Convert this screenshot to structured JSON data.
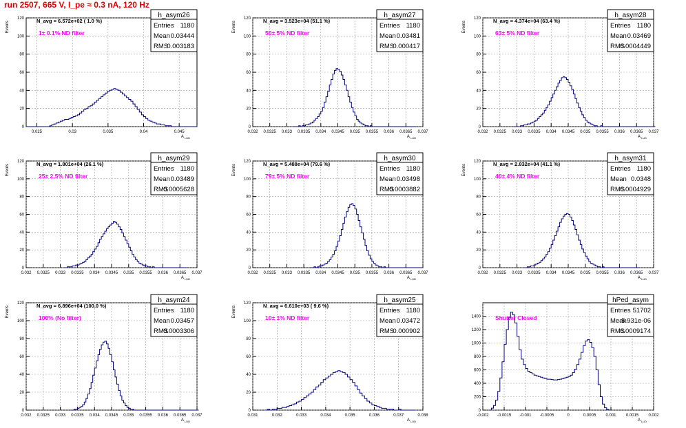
{
  "run_title": "run 2507,   665 V, I_pe ≈ 0.3 nA, 120 Hz",
  "colors": {
    "hist": "#000080",
    "note": "#ff00ff",
    "title": "#e00000",
    "grid": "#9a9a9a"
  },
  "stat_labels": {
    "entries": "Entries",
    "mean": "Mean",
    "rms": "RMS"
  },
  "chart_data": [
    {
      "type": "histogram",
      "name": "h_asym26",
      "navg": "N_avg = 6.572e+02 ( 1.0 %)",
      "note": "1± 0.1% ND filter",
      "entries": "1180",
      "mean": "0.03444",
      "rms": "0.003183",
      "ylabel": "Events",
      "xlabel": "A",
      "xlim": [
        0.0235,
        0.0475
      ],
      "ylim": [
        0,
        120
      ],
      "xticks": [
        0.025,
        0.03,
        0.035,
        0.04,
        0.045
      ],
      "xticklabels": [
        "0.025",
        "0.03",
        "0.035",
        "0.04",
        "0.045"
      ],
      "yticks": [
        0,
        20,
        40,
        60,
        80,
        100,
        120
      ],
      "bins": {
        "x0": 0.0235,
        "width": 0.0003,
        "values": [
          0,
          0,
          0,
          0,
          0,
          0,
          0,
          0,
          0,
          0,
          0,
          1,
          2,
          3,
          4,
          5,
          6,
          7,
          8,
          8,
          9,
          10,
          11,
          12,
          13,
          15,
          17,
          19,
          20,
          22,
          23,
          25,
          27,
          29,
          31,
          33,
          35,
          37,
          39,
          40,
          41,
          42,
          41,
          40,
          38,
          36,
          34,
          32,
          30,
          28,
          25,
          22,
          19,
          16,
          13,
          11,
          9,
          7,
          6,
          5,
          4,
          3,
          3,
          2,
          2,
          1,
          1,
          1,
          0,
          0,
          0,
          0,
          0,
          0,
          0,
          0,
          0,
          0,
          0,
          0
        ]
      }
    },
    {
      "type": "histogram",
      "name": "h_asym27",
      "navg": "N_avg = 3.523e+04 (51.1 %)",
      "note": "50± 5% ND filter",
      "entries": "1180",
      "mean": "0.03481",
      "rms": "0.000417",
      "ylabel": "Events",
      "xlabel": "A",
      "xlim": [
        0.032,
        0.037
      ],
      "ylim": [
        0,
        120
      ],
      "xticks": [
        0.032,
        0.0325,
        0.033,
        0.0335,
        0.034,
        0.0345,
        0.035,
        0.0355,
        0.036,
        0.0365,
        0.037
      ],
      "xticklabels": [
        "0.032",
        "0.0325",
        "0.033",
        "0.0335",
        "0.034",
        "0.0345",
        "0.035",
        "0.0355",
        "0.036",
        "0.0365",
        "0.037"
      ],
      "yticks": [
        0,
        20,
        40,
        60,
        80,
        100,
        120
      ],
      "bins": {
        "x0": 0.0332,
        "width": 5e-05,
        "values": [
          0,
          0,
          0,
          1,
          0,
          1,
          1,
          2,
          2,
          3,
          4,
          5,
          7,
          9,
          11,
          14,
          17,
          21,
          27,
          33,
          39,
          46,
          52,
          58,
          62,
          64,
          63,
          61,
          57,
          52,
          46,
          40,
          33,
          27,
          21,
          16,
          12,
          8,
          6,
          4,
          3,
          2,
          1,
          1,
          0,
          1,
          0,
          0,
          0,
          0,
          0,
          0,
          0,
          0,
          0,
          0,
          0,
          0,
          0,
          0,
          0,
          0,
          0,
          0,
          0,
          0,
          0,
          0,
          0,
          0,
          0,
          0
        ]
      }
    },
    {
      "type": "histogram",
      "name": "h_asym28",
      "navg": "N_avg = 4.374e+04 (63.4 %)",
      "note": "63± 5% ND filter",
      "entries": "1180",
      "mean": "0.03469",
      "rms": "0.0004449",
      "ylabel": "Events",
      "xlabel": "A",
      "xlim": [
        0.032,
        0.037
      ],
      "ylim": [
        0,
        120
      ],
      "xticks": [
        0.032,
        0.0325,
        0.033,
        0.0335,
        0.034,
        0.0345,
        0.035,
        0.0355,
        0.036,
        0.0365,
        0.037
      ],
      "xticklabels": [
        "0.032",
        "0.0325",
        "0.033",
        "0.0335",
        "0.034",
        "0.0345",
        "0.035",
        "0.0355",
        "0.036",
        "0.0365",
        "0.037"
      ],
      "yticks": [
        0,
        20,
        40,
        60,
        80,
        100,
        120
      ],
      "bins": {
        "x0": 0.0329,
        "width": 5e-05,
        "values": [
          0,
          0,
          0,
          0,
          1,
          1,
          2,
          2,
          3,
          3,
          4,
          5,
          6,
          7,
          9,
          11,
          13,
          15,
          18,
          21,
          24,
          28,
          32,
          36,
          40,
          44,
          48,
          51,
          54,
          55,
          54,
          52,
          49,
          45,
          41,
          36,
          31,
          26,
          21,
          17,
          13,
          10,
          7,
          5,
          4,
          3,
          2,
          1,
          1,
          0,
          0,
          1,
          0,
          0,
          0,
          0,
          0,
          0,
          0,
          0,
          0,
          0,
          0,
          0,
          0,
          0,
          0,
          0,
          0,
          0,
          0,
          0,
          0,
          0,
          0,
          0,
          0,
          0,
          0,
          0,
          0,
          0,
          0
        ]
      }
    },
    {
      "type": "histogram",
      "name": "h_asym29",
      "navg": "N_avg = 1.801e+04 (26.1 %)",
      "note": "25± 2.5% ND filter",
      "entries": "1180",
      "mean": "0.03489",
      "rms": "0.0005628",
      "ylabel": "Events",
      "xlabel": "A",
      "xlim": [
        0.032,
        0.037
      ],
      "ylim": [
        0,
        120
      ],
      "xticks": [
        0.032,
        0.0325,
        0.033,
        0.0335,
        0.034,
        0.0345,
        0.035,
        0.0355,
        0.036,
        0.0365,
        0.037
      ],
      "xticklabels": [
        "0.032",
        "0.0325",
        "0.033",
        "0.0335",
        "0.034",
        "0.0345",
        "0.035",
        "0.0355",
        "0.036",
        "0.0365",
        "0.037"
      ],
      "yticks": [
        0,
        20,
        40,
        60,
        80,
        100,
        120
      ],
      "bins": {
        "x0": 0.0331,
        "width": 5e-05,
        "values": [
          0,
          0,
          1,
          1,
          1,
          2,
          2,
          3,
          3,
          4,
          5,
          6,
          7,
          9,
          11,
          13,
          15,
          18,
          21,
          24,
          28,
          32,
          35,
          38,
          41,
          44,
          46,
          48,
          50,
          52,
          51,
          49,
          46,
          43,
          39,
          35,
          31,
          27,
          23,
          19,
          15,
          12,
          9,
          7,
          5,
          4,
          3,
          2,
          2,
          1,
          1,
          0,
          1,
          0,
          0,
          0,
          0,
          0,
          0,
          0,
          0,
          0,
          0,
          0,
          0,
          0,
          0,
          0,
          0,
          0,
          0,
          0
        ]
      }
    },
    {
      "type": "histogram",
      "name": "h_asym30",
      "navg": "N_avg = 5.488e+04 (79.6 %)",
      "note": "79± 5% ND filter",
      "entries": "1180",
      "mean": "0.03498",
      "rms": "0.0003882",
      "ylabel": "Events",
      "xlabel": "A",
      "xlim": [
        0.032,
        0.037
      ],
      "ylim": [
        0,
        120
      ],
      "xticks": [
        0.032,
        0.0325,
        0.033,
        0.0335,
        0.034,
        0.0345,
        0.035,
        0.0355,
        0.036,
        0.0365,
        0.037
      ],
      "xticklabels": [
        "0.032",
        "0.0325",
        "0.033",
        "0.0335",
        "0.034",
        "0.0345",
        "0.035",
        "0.0355",
        "0.036",
        "0.0365",
        "0.037"
      ],
      "yticks": [
        0,
        20,
        40,
        60,
        80,
        100,
        120
      ],
      "bins": {
        "x0": 0.0337,
        "width": 5e-05,
        "values": [
          0,
          0,
          1,
          0,
          1,
          2,
          2,
          3,
          4,
          5,
          7,
          9,
          12,
          15,
          19,
          24,
          30,
          36,
          43,
          50,
          57,
          63,
          68,
          71,
          72,
          70,
          66,
          60,
          53,
          46,
          39,
          32,
          25,
          19,
          14,
          10,
          7,
          5,
          3,
          2,
          1,
          1,
          0,
          1,
          0,
          0,
          0,
          0,
          0,
          0,
          0,
          0,
          0,
          0,
          0,
          0,
          0,
          0,
          0,
          0,
          0,
          0,
          0,
          0,
          0,
          0
        ]
      }
    },
    {
      "type": "histogram",
      "name": "h_asym31",
      "navg": "N_avg = 2.832e+04 (41.1 %)",
      "note": "40± 4% ND filter",
      "entries": "1180",
      "mean": "0.0348",
      "rms": "0.0004929",
      "ylabel": "Events",
      "xlabel": "A",
      "xlim": [
        0.032,
        0.037
      ],
      "ylim": [
        0,
        120
      ],
      "xticks": [
        0.032,
        0.0325,
        0.033,
        0.0335,
        0.034,
        0.0345,
        0.035,
        0.0355,
        0.036,
        0.0365,
        0.037
      ],
      "xticklabels": [
        "0.032",
        "0.0325",
        "0.033",
        "0.0335",
        "0.034",
        "0.0345",
        "0.035",
        "0.0355",
        "0.036",
        "0.0365",
        "0.037"
      ],
      "yticks": [
        0,
        20,
        40,
        60,
        80,
        100,
        120
      ],
      "bins": {
        "x0": 0.0332,
        "width": 5e-05,
        "values": [
          0,
          0,
          1,
          1,
          2,
          2,
          3,
          4,
          5,
          6,
          8,
          10,
          12,
          15,
          18,
          22,
          26,
          31,
          36,
          41,
          46,
          51,
          55,
          58,
          60,
          61,
          60,
          57,
          53,
          48,
          43,
          37,
          31,
          26,
          21,
          17,
          13,
          10,
          7,
          5,
          4,
          3,
          2,
          1,
          1,
          0,
          1,
          0,
          0,
          0,
          0,
          0,
          0,
          0,
          0,
          0,
          0,
          0,
          0,
          0,
          0,
          0,
          0,
          0,
          0,
          0,
          0,
          0
        ]
      }
    },
    {
      "type": "histogram",
      "name": "h_asym24",
      "navg": "N_avg = 6.896e+04 (100.0 %)",
      "note": "100% (No filter)",
      "entries": "1180",
      "mean": "0.03457",
      "rms": "0.0003306",
      "ylabel": "Events",
      "xlabel": "A",
      "xlim": [
        0.032,
        0.037
      ],
      "ylim": [
        0,
        120
      ],
      "xticks": [
        0.032,
        0.0325,
        0.033,
        0.0335,
        0.034,
        0.0345,
        0.035,
        0.0355,
        0.036,
        0.0365,
        0.037
      ],
      "xticklabels": [
        "0.032",
        "0.0325",
        "0.033",
        "0.0335",
        "0.034",
        "0.0345",
        "0.035",
        "0.0355",
        "0.036",
        "0.0365",
        "0.037"
      ],
      "yticks": [
        0,
        20,
        40,
        60,
        80,
        100,
        120
      ],
      "bins": {
        "x0": 0.0333,
        "width": 5e-05,
        "values": [
          0,
          0,
          1,
          1,
          2,
          3,
          4,
          6,
          9,
          13,
          18,
          24,
          31,
          39,
          47,
          55,
          62,
          68,
          73,
          76,
          77,
          74,
          69,
          62,
          54,
          45,
          37,
          29,
          22,
          16,
          11,
          8,
          5,
          3,
          2,
          1,
          1,
          0,
          0,
          0,
          0,
          0,
          0,
          0,
          0,
          0,
          0,
          0,
          0,
          0,
          0,
          0,
          0,
          0,
          0,
          0,
          0,
          0,
          0,
          0,
          0,
          0,
          0,
          0,
          0,
          0,
          0,
          0,
          0,
          0,
          0,
          0,
          0,
          0,
          0
        ]
      }
    },
    {
      "type": "histogram",
      "name": "h_asym25",
      "navg": "N_avg = 6.610e+03 ( 9.6 %)",
      "note": "10± 1% ND filter",
      "entries": "1180",
      "mean": "0.03472",
      "rms": "0.000902",
      "ylabel": "Events",
      "xlabel": "A",
      "xlim": [
        0.031,
        0.038
      ],
      "ylim": [
        0,
        120
      ],
      "xticks": [
        0.031,
        0.032,
        0.033,
        0.034,
        0.035,
        0.036,
        0.037,
        0.038
      ],
      "xticklabels": [
        "0.031",
        "0.032",
        "0.033",
        "0.034",
        "0.035",
        "0.036",
        "0.037",
        "0.038"
      ],
      "yticks": [
        0,
        20,
        40,
        60,
        80,
        100,
        120
      ],
      "bins": {
        "x0": 0.0315,
        "width": 0.0001,
        "values": [
          0,
          1,
          0,
          1,
          1,
          2,
          2,
          3,
          3,
          4,
          5,
          6,
          7,
          9,
          10,
          12,
          14,
          16,
          18,
          20,
          23,
          26,
          28,
          31,
          34,
          36,
          38,
          40,
          42,
          43,
          44,
          43,
          42,
          40,
          37,
          34,
          31,
          27,
          23,
          19,
          16,
          13,
          10,
          8,
          6,
          5,
          4,
          3,
          2,
          2,
          1,
          1,
          1,
          0,
          0,
          1,
          0,
          0,
          0,
          0,
          0,
          0
        ]
      }
    },
    {
      "type": "histogram",
      "name": "hPed_asym",
      "navg": "",
      "note": "Shutter Closed",
      "entries": "51702",
      "mean": "-5.931e-06",
      "rms": "0.0009174",
      "ylabel": "",
      "xlabel": "A",
      "xlim": [
        -0.002,
        0.002
      ],
      "ylim": [
        0,
        1600
      ],
      "xticks": [
        -0.002,
        -0.0015,
        -0.001,
        -0.0005,
        0,
        0.0005,
        0.001,
        0.0015,
        0.002
      ],
      "xticklabels": [
        "-0.002",
        "-0.0015",
        "-0.001",
        "-0.0005",
        "0",
        "0.0005",
        "0.001",
        "0.0015",
        "0.002"
      ],
      "yticks": [
        0,
        200,
        400,
        600,
        800,
        1000,
        1200,
        1400
      ],
      "bins": {
        "x0": -0.00185,
        "width": 5e-05,
        "values": [
          0,
          30,
          70,
          150,
          280,
          480,
          720,
          980,
          1200,
          1380,
          1460,
          1420,
          1300,
          1100,
          900,
          760,
          680,
          620,
          580,
          560,
          540,
          520,
          510,
          500,
          490,
          480,
          470,
          460,
          460,
          455,
          450,
          450,
          455,
          460,
          470,
          480,
          490,
          500,
          520,
          560,
          610,
          680,
          760,
          860,
          960,
          1030,
          1050,
          1010,
          930,
          800,
          600,
          380,
          200,
          90,
          35,
          10,
          0
        ]
      }
    }
  ]
}
